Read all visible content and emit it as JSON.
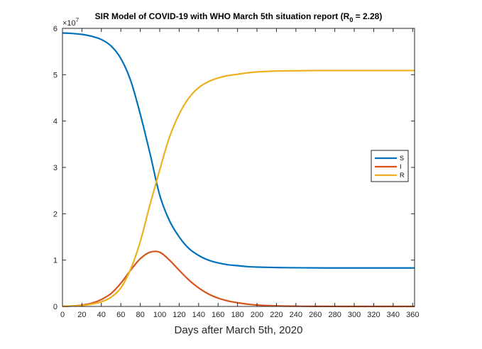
{
  "chart_data": {
    "type": "line",
    "title": "SIR Model of COVID-19 with WHO March 5th situation report (R",
    "title_subscript": "0",
    "title_suffix": " = 2.28)",
    "xlabel": "Days after March 5th, 2020",
    "ylabel": "",
    "y_exponent_label": "×10",
    "y_exponent_power": "7",
    "xlim": [
      0,
      362
    ],
    "ylim": [
      0,
      6
    ],
    "xticks": [
      0,
      20,
      40,
      60,
      80,
      100,
      120,
      140,
      160,
      180,
      200,
      220,
      240,
      260,
      280,
      300,
      320,
      340,
      360
    ],
    "yticks": [
      0,
      1,
      2,
      3,
      4,
      5,
      6
    ],
    "grid": false,
    "legend_position": "right",
    "x": [
      0,
      10,
      20,
      30,
      40,
      50,
      60,
      70,
      80,
      90,
      100,
      110,
      120,
      130,
      140,
      150,
      160,
      170,
      180,
      190,
      200,
      220,
      240,
      260,
      280,
      300,
      320,
      340,
      362
    ],
    "series": [
      {
        "name": "S",
        "color": "#0072BD",
        "values": [
          5.9,
          5.89,
          5.87,
          5.83,
          5.76,
          5.62,
          5.35,
          4.88,
          4.15,
          3.3,
          2.4,
          1.85,
          1.5,
          1.25,
          1.1,
          1.0,
          0.94,
          0.9,
          0.88,
          0.86,
          0.85,
          0.84,
          0.835,
          0.832,
          0.83,
          0.83,
          0.83,
          0.83,
          0.83
        ]
      },
      {
        "name": "I",
        "color": "#D95319",
        "values": [
          0.0,
          0.01,
          0.03,
          0.07,
          0.15,
          0.28,
          0.5,
          0.78,
          1.03,
          1.17,
          1.17,
          1.0,
          0.78,
          0.57,
          0.4,
          0.27,
          0.18,
          0.12,
          0.08,
          0.05,
          0.03,
          0.012,
          0.005,
          0.002,
          0.001,
          0.0,
          0.0,
          0.0,
          0.0
        ]
      },
      {
        "name": "R",
        "color": "#EDB120",
        "values": [
          0.0,
          0.01,
          0.02,
          0.05,
          0.1,
          0.2,
          0.4,
          0.8,
          1.4,
          2.2,
          2.95,
          3.65,
          4.15,
          4.5,
          4.72,
          4.85,
          4.93,
          4.98,
          5.01,
          5.04,
          5.06,
          5.08,
          5.085,
          5.09,
          5.09,
          5.09,
          5.09,
          5.09,
          5.09
        ]
      }
    ]
  }
}
